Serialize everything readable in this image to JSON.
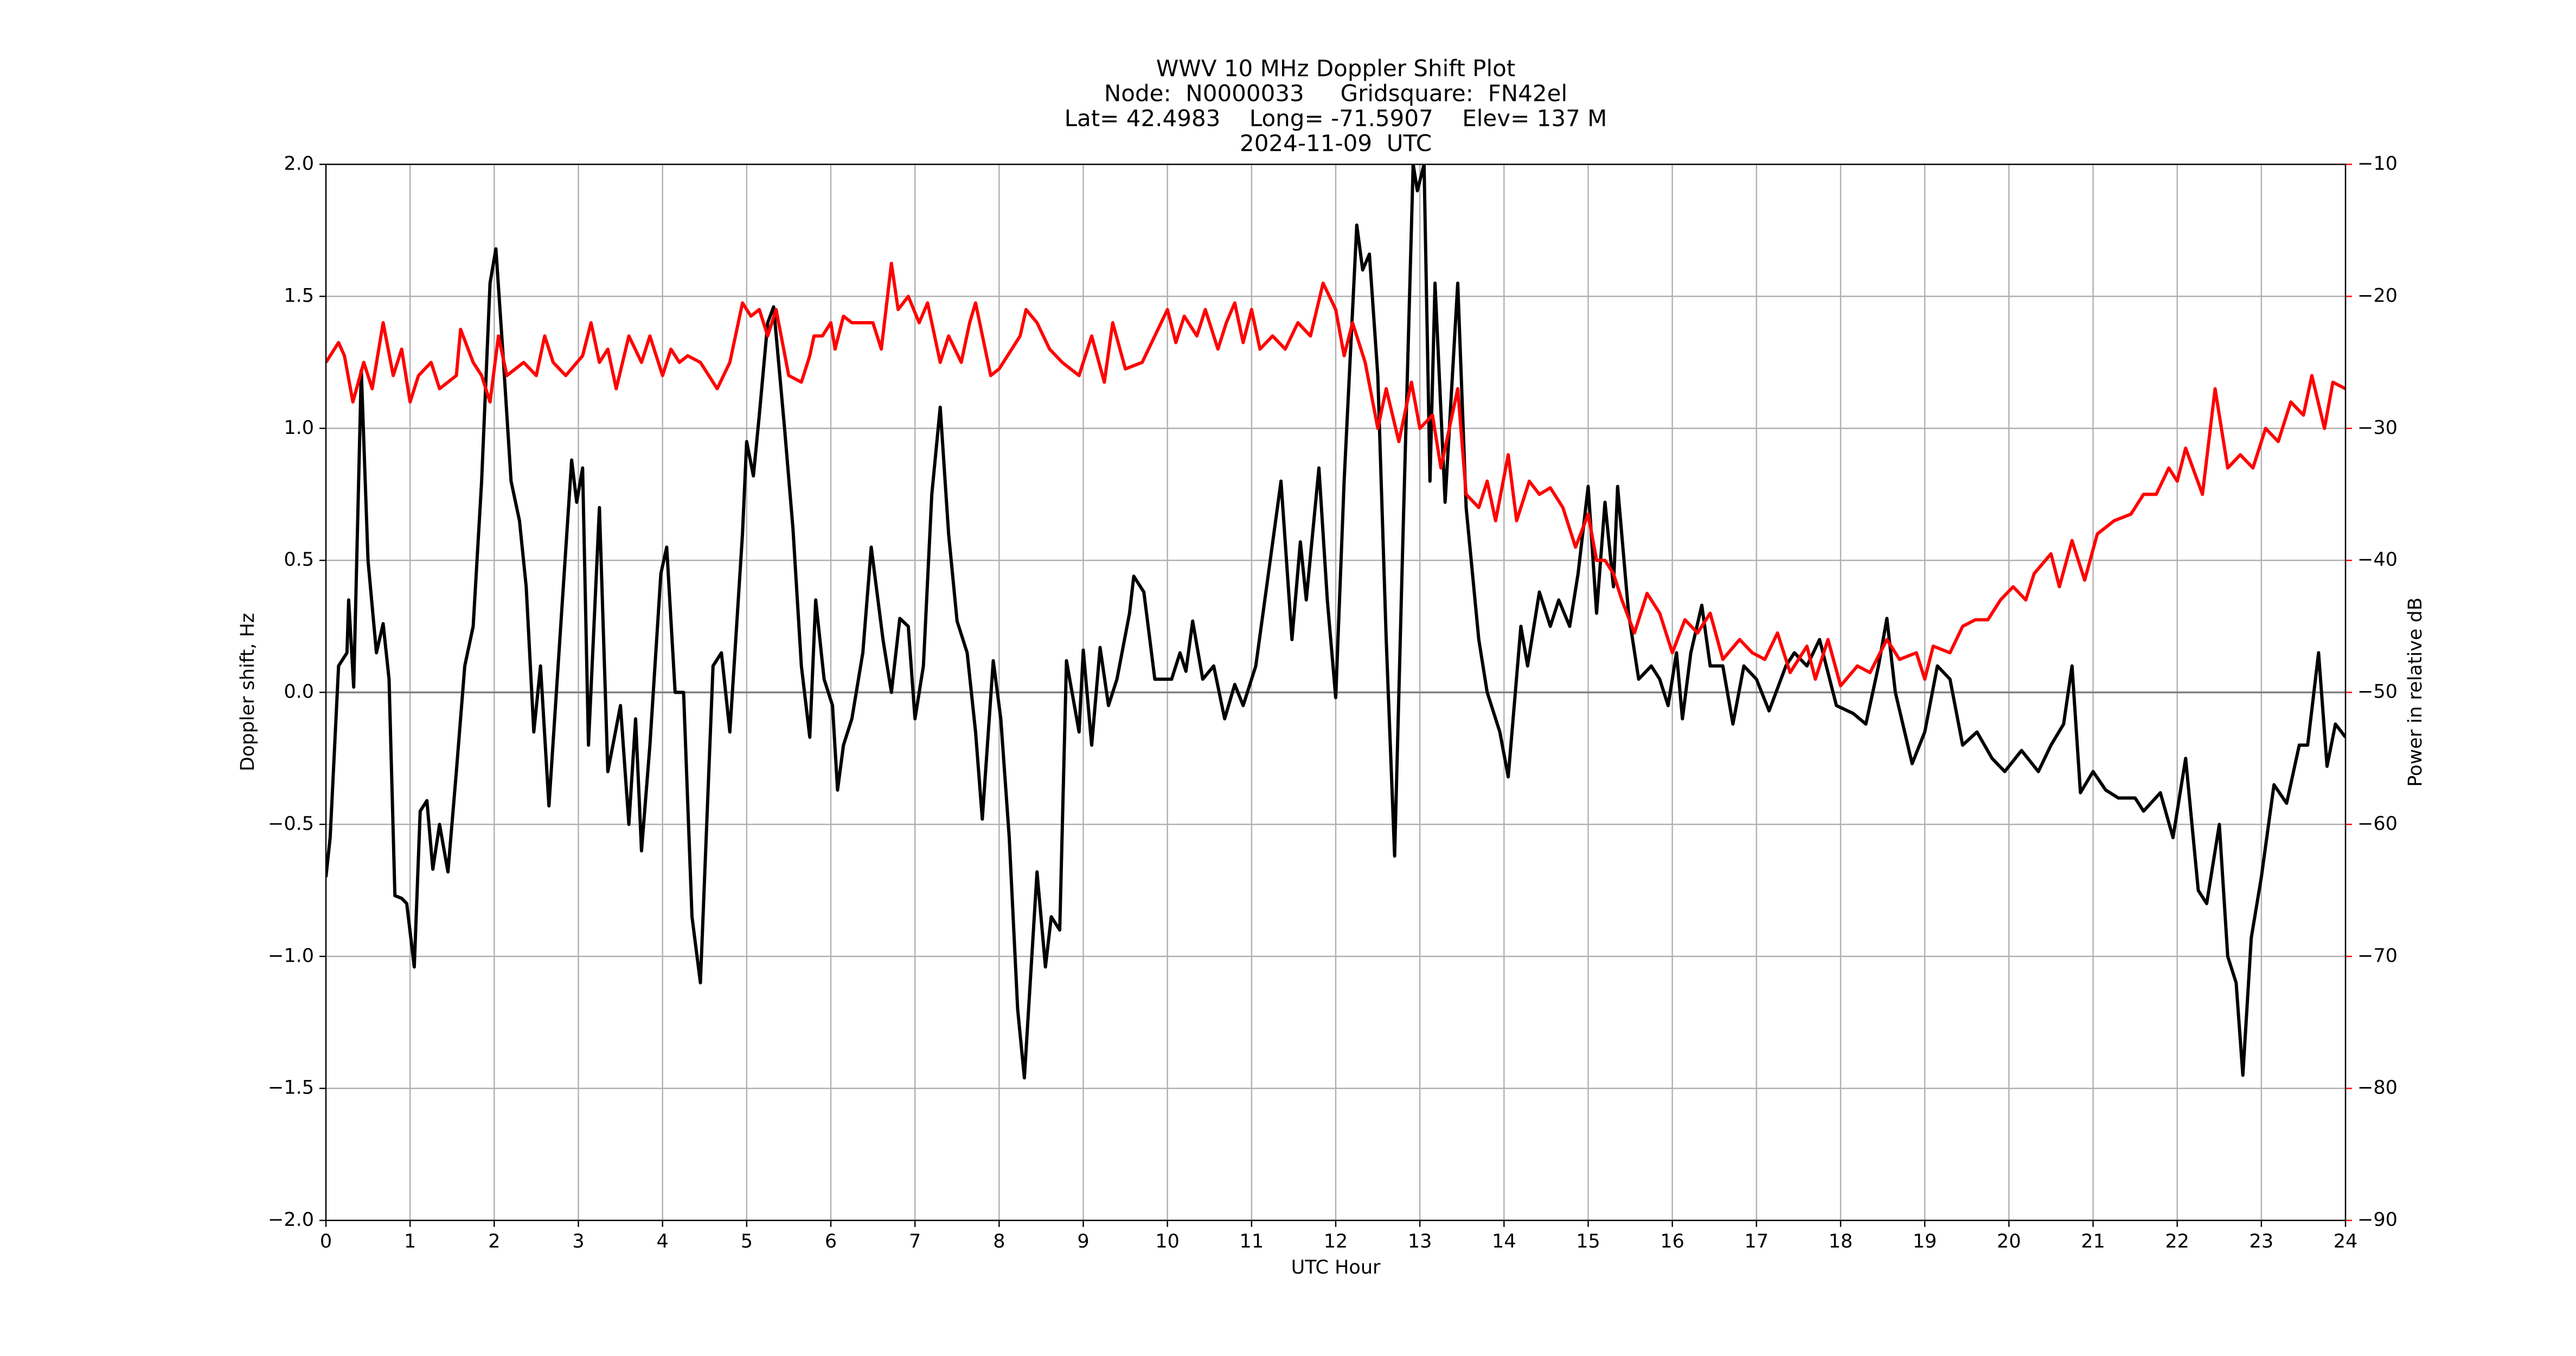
{
  "chart_data": {
    "type": "line",
    "title": [
      "WWV 10 MHz Doppler Shift Plot",
      "Node:  N0000033     Gridsquare:  FN42el",
      "Lat= 42.4983    Long= -71.5907    Elev= 137 M",
      "2024-11-09  UTC"
    ],
    "x_label": "UTC Hour",
    "y_label": "Doppler shift, Hz",
    "y2_label": "Power in relative dB",
    "y2_color": "#ff0000",
    "xlim": [
      0,
      24
    ],
    "xticks": [
      0,
      1,
      2,
      3,
      4,
      5,
      6,
      7,
      8,
      9,
      10,
      11,
      12,
      13,
      14,
      15,
      16,
      17,
      18,
      19,
      20,
      21,
      22,
      23,
      24
    ],
    "ylim": [
      -2,
      2
    ],
    "yticks": [
      {
        "value": -2,
        "label": "−2.0"
      },
      {
        "value": -1.5,
        "label": "−1.5"
      },
      {
        "value": -1,
        "label": "−1.0"
      },
      {
        "value": -0.5,
        "label": "−0.5"
      },
      {
        "value": 0,
        "label": "0.0"
      },
      {
        "value": 0.5,
        "label": "0.5"
      },
      {
        "value": 1,
        "label": "1.0"
      },
      {
        "value": 1.5,
        "label": "1.5"
      },
      {
        "value": 2,
        "label": "2.0"
      }
    ],
    "y2lim": [
      -90,
      -10
    ],
    "y2ticks": [
      {
        "value": -90,
        "label": "−90"
      },
      {
        "value": -80,
        "label": "−80"
      },
      {
        "value": -70,
        "label": "−70"
      },
      {
        "value": -60,
        "label": "−60"
      },
      {
        "value": -50,
        "label": "−50"
      },
      {
        "value": -40,
        "label": "−40"
      },
      {
        "value": -30,
        "label": "−30"
      },
      {
        "value": -20,
        "label": "−20"
      },
      {
        "value": -10,
        "label": "−10"
      }
    ],
    "grid": true,
    "series": [
      {
        "color": "#000000",
        "x": [
          0,
          0.05,
          0.15,
          0.25,
          0.27,
          0.33,
          0.42,
          0.5,
          0.6,
          0.68,
          0.75,
          0.82,
          0.9,
          0.96,
          1.05,
          1.12,
          1.2,
          1.27,
          1.35,
          1.45,
          1.55,
          1.65,
          1.75,
          1.85,
          1.95,
          2.02,
          2.1,
          2.2,
          2.3,
          2.38,
          2.47,
          2.55,
          2.65,
          2.8,
          2.92,
          2.98,
          3.05,
          3.12,
          3.25,
          3.35,
          3.5,
          3.6,
          3.68,
          3.75,
          3.85,
          3.98,
          4.05,
          4.15,
          4.25,
          4.35,
          4.45,
          4.6,
          4.7,
          4.8,
          4.95,
          5.0,
          5.08,
          5.15,
          5.25,
          5.32,
          5.45,
          5.55,
          5.65,
          5.75,
          5.82,
          5.92,
          6.02,
          6.08,
          6.15,
          6.25,
          6.38,
          6.48,
          6.62,
          6.72,
          6.82,
          6.92,
          7.0,
          7.1,
          7.2,
          7.3,
          7.4,
          7.5,
          7.62,
          7.72,
          7.8,
          7.93,
          8.02,
          8.12,
          8.22,
          8.3,
          8.45,
          8.55,
          8.62,
          8.72,
          8.8,
          8.95,
          9.0,
          9.1,
          9.2,
          9.3,
          9.4,
          9.55,
          9.6,
          9.72,
          9.85,
          10.05,
          10.15,
          10.22,
          10.3,
          10.42,
          10.55,
          10.68,
          10.8,
          10.9,
          11.05,
          11.2,
          11.35,
          11.48,
          11.58,
          11.65,
          11.8,
          11.9,
          12.0,
          12.1,
          12.25,
          12.32,
          12.4,
          12.5,
          12.6,
          12.7,
          12.8,
          12.92,
          12.97,
          13.05,
          13.12,
          13.18,
          13.3,
          13.45,
          13.55,
          13.7,
          13.8,
          13.95,
          14.05,
          14.2,
          14.28,
          14.42,
          14.55,
          14.65,
          14.78,
          14.88,
          15.0,
          15.1,
          15.2,
          15.3,
          15.35,
          15.48,
          15.6,
          15.75,
          15.85,
          15.95,
          16.05,
          16.12,
          16.22,
          16.35,
          16.45,
          16.6,
          16.72,
          16.85,
          17.0,
          17.15,
          17.35,
          17.45,
          17.6,
          17.75,
          17.95,
          18.15,
          18.3,
          18.45,
          18.55,
          18.65,
          18.85,
          19.0,
          19.15,
          19.3,
          19.45,
          19.62,
          19.8,
          19.95,
          20.15,
          20.35,
          20.5,
          20.65,
          20.75,
          20.85,
          21.0,
          21.15,
          21.3,
          21.5,
          21.6,
          21.8,
          21.95,
          22.1,
          22.25,
          22.35,
          22.5,
          22.6,
          22.7,
          22.78,
          22.88,
          23.0,
          23.15,
          23.3,
          23.45,
          23.55,
          23.68,
          23.78,
          23.88,
          24
        ],
        "values": [
          -0.7,
          -0.55,
          0.1,
          0.15,
          0.35,
          0.02,
          1.22,
          0.5,
          0.15,
          0.26,
          0.05,
          -0.77,
          -0.78,
          -0.8,
          -1.04,
          -0.45,
          -0.41,
          -0.67,
          -0.5,
          -0.68,
          -0.3,
          0.1,
          0.25,
          0.8,
          1.55,
          1.68,
          1.3,
          0.8,
          0.65,
          0.4,
          -0.15,
          0.1,
          -0.43,
          0.3,
          0.88,
          0.72,
          0.85,
          -0.2,
          0.7,
          -0.3,
          -0.05,
          -0.5,
          -0.1,
          -0.6,
          -0.2,
          0.45,
          0.55,
          0.0,
          0.0,
          -0.85,
          -1.1,
          0.1,
          0.15,
          -0.15,
          0.6,
          0.95,
          0.82,
          1.05,
          1.4,
          1.46,
          1.0,
          0.62,
          0.1,
          -0.17,
          0.35,
          0.05,
          -0.05,
          -0.37,
          -0.2,
          -0.1,
          0.15,
          0.55,
          0.2,
          0.0,
          0.28,
          0.25,
          -0.1,
          0.1,
          0.75,
          1.08,
          0.6,
          0.27,
          0.15,
          -0.15,
          -0.48,
          0.12,
          -0.1,
          -0.55,
          -1.2,
          -1.46,
          -0.68,
          -1.04,
          -0.85,
          -0.9,
          0.12,
          -0.15,
          0.16,
          -0.2,
          0.17,
          -0.05,
          0.05,
          0.3,
          0.44,
          0.38,
          0.05,
          0.05,
          0.15,
          0.08,
          0.27,
          0.05,
          0.1,
          -0.1,
          0.03,
          -0.05,
          0.1,
          0.45,
          0.8,
          0.2,
          0.57,
          0.35,
          0.85,
          0.35,
          -0.02,
          0.8,
          1.77,
          1.6,
          1.66,
          1.2,
          0.2,
          -0.62,
          0.6,
          2.0,
          1.9,
          2.0,
          0.8,
          1.55,
          0.72,
          1.55,
          0.7,
          0.2,
          0.0,
          -0.15,
          -0.32,
          0.25,
          0.1,
          0.38,
          0.25,
          0.35,
          0.25,
          0.45,
          0.78,
          0.3,
          0.72,
          0.4,
          0.78,
          0.3,
          0.05,
          0.1,
          0.05,
          -0.05,
          0.15,
          -0.1,
          0.15,
          0.33,
          0.1,
          0.1,
          -0.12,
          0.1,
          0.05,
          -0.07,
          0.1,
          0.15,
          0.1,
          0.2,
          -0.05,
          -0.08,
          -0.12,
          0.1,
          0.28,
          0.0,
          -0.27,
          -0.15,
          0.1,
          0.05,
          -0.2,
          -0.15,
          -0.25,
          -0.3,
          -0.22,
          -0.3,
          -0.2,
          -0.12,
          0.1,
          -0.38,
          -0.3,
          -0.37,
          -0.4,
          -0.4,
          -0.45,
          -0.38,
          -0.55,
          -0.25,
          -0.75,
          -0.8,
          -0.5,
          -1.0,
          -1.1,
          -1.45,
          -0.93,
          -0.7,
          -0.35,
          -0.42,
          -0.2,
          -0.2,
          0.15,
          -0.28,
          -0.12,
          -0.17
        ]
      },
      {
        "color": "#ff0000",
        "axis": "y2",
        "x": [
          0,
          0.15,
          0.22,
          0.32,
          0.45,
          0.55,
          0.68,
          0.8,
          0.9,
          1.0,
          1.1,
          1.25,
          1.35,
          1.55,
          1.6,
          1.75,
          1.85,
          1.95,
          2.05,
          2.15,
          2.35,
          2.5,
          2.6,
          2.7,
          2.85,
          3.05,
          3.15,
          3.25,
          3.35,
          3.45,
          3.6,
          3.75,
          3.85,
          4.0,
          4.1,
          4.2,
          4.3,
          4.45,
          4.55,
          4.65,
          4.8,
          4.95,
          5.05,
          5.15,
          5.25,
          5.35,
          5.5,
          5.65,
          5.75,
          5.8,
          5.9,
          6.0,
          6.05,
          6.15,
          6.25,
          6.5,
          6.6,
          6.72,
          6.8,
          6.92,
          7.05,
          7.15,
          7.3,
          7.4,
          7.55,
          7.65,
          7.72,
          7.9,
          8.0,
          8.15,
          8.25,
          8.32,
          8.45,
          8.6,
          8.75,
          8.95,
          9.1,
          9.25,
          9.35,
          9.5,
          9.7,
          9.85,
          10.0,
          10.1,
          10.2,
          10.35,
          10.45,
          10.6,
          10.7,
          10.8,
          10.9,
          11.0,
          11.1,
          11.25,
          11.4,
          11.55,
          11.7,
          11.85,
          12.0,
          12.1,
          12.2,
          12.35,
          12.5,
          12.6,
          12.75,
          12.9,
          13.0,
          13.15,
          13.25,
          13.45,
          13.55,
          13.7,
          13.8,
          13.9,
          14.05,
          14.15,
          14.3,
          14.42,
          14.55,
          14.7,
          14.85,
          15.0,
          15.1,
          15.2,
          15.3,
          15.4,
          15.55,
          15.7,
          15.85,
          16.0,
          16.15,
          16.3,
          16.45,
          16.6,
          16.8,
          16.95,
          17.1,
          17.25,
          17.4,
          17.6,
          17.7,
          17.85,
          18.0,
          18.2,
          18.35,
          18.55,
          18.7,
          18.9,
          19.0,
          19.1,
          19.3,
          19.45,
          19.6,
          19.75,
          19.9,
          20.05,
          20.2,
          20.3,
          20.5,
          20.6,
          20.75,
          20.9,
          21.05,
          21.25,
          21.45,
          21.6,
          21.75,
          21.9,
          22.0,
          22.1,
          22.3,
          22.45,
          22.6,
          22.75,
          22.9,
          23.05,
          23.2,
          23.35,
          23.5,
          23.6,
          23.75,
          23.85,
          24
        ],
        "values": [
          -25,
          -23.5,
          -24.5,
          -28,
          -25,
          -27,
          -22,
          -26,
          -24,
          -28,
          -26,
          -25,
          -27,
          -26,
          -22.5,
          -25,
          -26,
          -28,
          -23,
          -26,
          -25,
          -26,
          -23,
          -25,
          -26,
          -24.5,
          -22,
          -25,
          -24,
          -27,
          -23,
          -25,
          -23,
          -26,
          -24,
          -25,
          -24.5,
          -25,
          -26,
          -27,
          -25,
          -20.5,
          -21.5,
          -21,
          -23,
          -21,
          -26,
          -26.5,
          -24.5,
          -23,
          -23,
          -22,
          -24,
          -21.5,
          -22,
          -22,
          -24,
          -17.5,
          -21,
          -20,
          -22,
          -20.5,
          -25,
          -23,
          -25,
          -22,
          -20.5,
          -26,
          -25.5,
          -24,
          -23,
          -21,
          -22,
          -24,
          -25,
          -26,
          -23,
          -26.5,
          -22,
          -25.5,
          -25,
          -23,
          -21,
          -23.5,
          -21.5,
          -23,
          -21,
          -24,
          -22,
          -20.5,
          -23.5,
          -21,
          -24,
          -23,
          -24,
          -22,
          -23,
          -19,
          -21,
          -24.5,
          -22,
          -25,
          -30,
          -27,
          -31,
          -26.5,
          -30,
          -29,
          -33,
          -27,
          -35,
          -36,
          -34,
          -37,
          -32,
          -37,
          -34,
          -35,
          -34.5,
          -36,
          -39,
          -36.5,
          -40,
          -40,
          -41,
          -43,
          -45.5,
          -42.5,
          -44,
          -47,
          -44.5,
          -45.5,
          -44,
          -47.5,
          -46,
          -47,
          -47.5,
          -45.5,
          -48.5,
          -46.5,
          -49,
          -46,
          -49.5,
          -48,
          -48.5,
          -46,
          -47.5,
          -47,
          -49,
          -46.5,
          -47,
          -45,
          -44.5,
          -44.5,
          -43,
          -42,
          -43,
          -41,
          -39.5,
          -42,
          -38.5,
          -41.5,
          -38,
          -37,
          -36.5,
          -35,
          -35,
          -33,
          -34,
          -31.5,
          -35,
          -27,
          -33,
          -32,
          -33,
          -30,
          -31,
          -28,
          -29,
          -26,
          -30,
          -26.5,
          -27
        ]
      }
    ]
  }
}
